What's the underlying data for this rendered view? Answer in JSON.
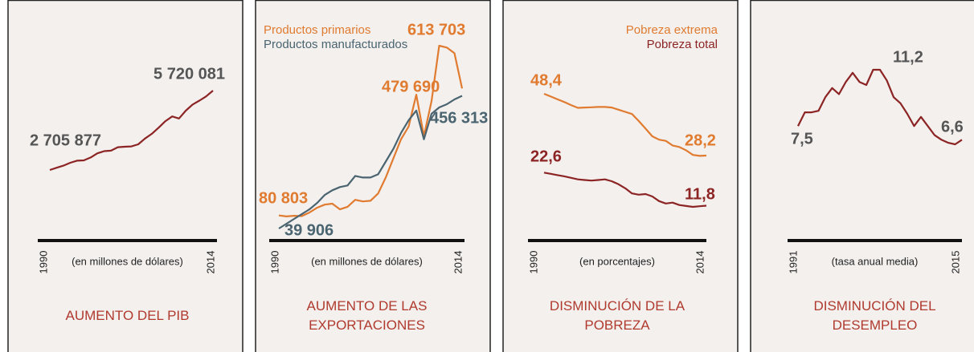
{
  "chart_data": [
    {
      "type": "line",
      "title": "AUMENTO DEL PIB",
      "xlabel": "(en millones de dólares)",
      "x": [
        1990,
        1991,
        1992,
        1993,
        1994,
        1995,
        1996,
        1997,
        1998,
        1999,
        2000,
        2001,
        2002,
        2003,
        2004,
        2005,
        2006,
        2007,
        2008,
        2009,
        2010,
        2011,
        2012,
        2013,
        2014
      ],
      "xticks": [
        1990,
        2014
      ],
      "value_label_color": "#555555",
      "series": [
        {
          "color": "#8c2424",
          "values": [
            2705877,
            2790000,
            2870000,
            2980000,
            3060000,
            3070000,
            3180000,
            3340000,
            3420000,
            3440000,
            3570000,
            3590000,
            3600000,
            3680000,
            3900000,
            4080000,
            4310000,
            4560000,
            4740000,
            4660000,
            4960000,
            5190000,
            5340000,
            5500000,
            5720081
          ],
          "value_labels": [
            "2 705 877",
            null,
            null,
            null,
            null,
            null,
            null,
            null,
            null,
            null,
            null,
            null,
            null,
            null,
            null,
            null,
            null,
            null,
            null,
            null,
            null,
            null,
            null,
            null,
            "5 720 081"
          ]
        }
      ]
    },
    {
      "type": "line",
      "title": "AUMENTO DE LAS EXPORTACIONES",
      "xlabel": "(en millones de dólares)",
      "x": [
        1990,
        1991,
        1992,
        1993,
        1994,
        1995,
        1996,
        1997,
        1998,
        1999,
        2000,
        2001,
        2002,
        2003,
        2004,
        2005,
        2006,
        2007,
        2008,
        2009,
        2010,
        2011,
        2012,
        2013,
        2014
      ],
      "xticks": [
        1990,
        2014
      ],
      "legend": "top-left",
      "series": [
        {
          "name": "Productos primarios",
          "color": "#e07b30",
          "values": [
            80803,
            78000,
            80000,
            79000,
            90000,
            105000,
            115000,
            118000,
            100000,
            108000,
            130000,
            125000,
            127000,
            150000,
            200000,
            260000,
            320000,
            360000,
            460000,
            330000,
            440000,
            613703,
            608000,
            590000,
            479690
          ],
          "value_labels": [
            "80 803",
            null,
            null,
            null,
            null,
            null,
            null,
            null,
            null,
            null,
            null,
            null,
            null,
            null,
            null,
            null,
            null,
            null,
            null,
            null,
            null,
            "613 703",
            null,
            null,
            "479 690"
          ]
        },
        {
          "name": "Productos manufacturados",
          "color": "#4a6470",
          "values": [
            39906,
            55000,
            70000,
            85000,
            100000,
            120000,
            145000,
            160000,
            170000,
            175000,
            205000,
            200000,
            200000,
            210000,
            250000,
            290000,
            340000,
            380000,
            410000,
            320000,
            400000,
            420000,
            430000,
            445000,
            456313
          ],
          "value_labels": [
            "39 906",
            null,
            null,
            null,
            null,
            null,
            null,
            null,
            null,
            null,
            null,
            null,
            null,
            null,
            null,
            null,
            null,
            null,
            null,
            null,
            null,
            null,
            null,
            null,
            "456 313"
          ]
        }
      ]
    },
    {
      "type": "line",
      "title": "DISMINUCIÓN DE LA POBREZA",
      "xlabel": "(en porcentajes)",
      "x": [
        1990,
        1991,
        1992,
        1993,
        1994,
        1995,
        1996,
        1997,
        1998,
        1999,
        2000,
        2001,
        2002,
        2003,
        2004,
        2005,
        2006,
        2007,
        2008,
        2009,
        2010,
        2011,
        2012,
        2013,
        2014
      ],
      "xticks": [
        1990,
        2014
      ],
      "legend": "top-right",
      "series": [
        {
          "name": "Pobreza extrema",
          "color": "#e07b30",
          "values": [
            48.4,
            47.5,
            46.6,
            45.7,
            44.7,
            43.8,
            43.9,
            44.0,
            44.1,
            44.1,
            43.9,
            43.2,
            42.5,
            41.8,
            39.5,
            37.0,
            34.5,
            33.4,
            33.0,
            31.5,
            31.0,
            29.9,
            28.4,
            28.1,
            28.2
          ],
          "value_labels": [
            "48,4",
            null,
            null,
            null,
            null,
            null,
            null,
            null,
            null,
            null,
            null,
            null,
            null,
            null,
            null,
            null,
            null,
            null,
            null,
            null,
            null,
            null,
            null,
            null,
            "28,2"
          ]
        },
        {
          "name": "Pobreza total",
          "color": "#8c2424",
          "values": [
            22.6,
            22.2,
            21.8,
            21.4,
            20.9,
            20.4,
            20.2,
            20.0,
            20.2,
            20.4,
            19.8,
            18.8,
            17.5,
            15.8,
            15.4,
            15.6,
            14.8,
            13.3,
            12.5,
            12.8,
            12.0,
            11.7,
            11.4,
            11.6,
            11.8
          ],
          "value_labels": [
            "22,6",
            null,
            null,
            null,
            null,
            null,
            null,
            null,
            null,
            null,
            null,
            null,
            null,
            null,
            null,
            null,
            null,
            null,
            null,
            null,
            null,
            null,
            null,
            null,
            "11,8"
          ]
        }
      ]
    },
    {
      "type": "line",
      "title": "DISMINUCIÓN DEL DESEMPLEO",
      "xlabel": "(tasa anual media)",
      "x": [
        1991,
        1992,
        1993,
        1994,
        1995,
        1996,
        1997,
        1998,
        1999,
        2000,
        2001,
        2002,
        2003,
        2004,
        2005,
        2006,
        2007,
        2008,
        2009,
        2010,
        2011,
        2012,
        2013,
        2014,
        2015
      ],
      "xticks": [
        1991,
        2015
      ],
      "value_label_color": "#555555",
      "series": [
        {
          "color": "#8c2424",
          "values": [
            7.5,
            8.4,
            8.4,
            8.5,
            9.4,
            10.0,
            9.6,
            10.4,
            11.0,
            10.4,
            10.2,
            11.2,
            11.2,
            10.5,
            9.4,
            9.0,
            8.3,
            7.5,
            8.1,
            7.5,
            6.9,
            6.6,
            6.4,
            6.3,
            6.6
          ],
          "value_labels": [
            "7,5",
            null,
            null,
            null,
            null,
            null,
            null,
            null,
            null,
            null,
            null,
            "11,2",
            null,
            null,
            null,
            null,
            null,
            null,
            null,
            null,
            null,
            null,
            null,
            null,
            "6,6"
          ]
        }
      ]
    }
  ]
}
